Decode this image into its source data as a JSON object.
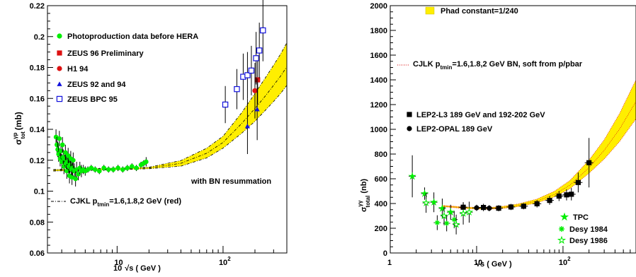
{
  "charts": [
    {
      "type": "scatter",
      "title": "",
      "xlabel_pre": "10",
      "xlabel": "√s ( GeV )",
      "ylabel_main": "σ",
      "ylabel_sup": "γp",
      "ylabel_sub": "tot",
      "ylabel_unit": "(mb)",
      "xscale": "log",
      "xlim": [
        2.2,
        400
      ],
      "ylim": [
        0.06,
        0.22
      ],
      "yticks": [
        "0.06",
        "0.08",
        "0.1",
        "0.12",
        "0.14",
        "0.16",
        "0.18",
        "0.2",
        "0.22"
      ],
      "xticks": [
        {
          "value": 10,
          "label": "10"
        },
        {
          "value": 100,
          "label": "10",
          "exp": "2"
        }
      ],
      "legend": [
        {
          "label": "Photoproduction data before HERA",
          "marker": "circle",
          "color": "#00ee00"
        },
        {
          "label": "ZEUS 96 Preliminary",
          "marker": "square",
          "color": "#dd1111"
        },
        {
          "label": "H1 94",
          "marker": "circle",
          "color": "#dd1111"
        },
        {
          "label": "ZEUS 92 and 94",
          "marker": "triangle",
          "color": "#1111dd"
        },
        {
          "label": "ZEUS BPC 95",
          "marker": "open-square",
          "color": "#1111dd"
        }
      ],
      "annotations": {
        "resummation": "with BN resummation",
        "curve_pre": "CJKL p",
        "curve_sub": "tmin",
        "curve_post": "=1.6,1.8,2 GeV (red)"
      },
      "band": {
        "x": [
          2.5,
          5,
          10,
          20,
          40,
          70,
          100,
          150,
          200,
          250,
          300,
          350,
          400
        ],
        "low": [
          0.113,
          0.1135,
          0.1138,
          0.1145,
          0.1162,
          0.1215,
          0.1278,
          0.1375,
          0.1452,
          0.1522,
          0.158,
          0.1632,
          0.1685
        ],
        "mid": [
          0.1135,
          0.114,
          0.1143,
          0.115,
          0.118,
          0.1245,
          0.1315,
          0.1438,
          0.1535,
          0.1615,
          0.1685,
          0.1745,
          0.1805
        ],
        "high": [
          0.114,
          0.1145,
          0.1148,
          0.1155,
          0.1198,
          0.1278,
          0.1355,
          0.1508,
          0.1632,
          0.1732,
          0.1815,
          0.1888,
          0.196
        ]
      },
      "series": [
        {
          "name": "Photoproduction data before HERA",
          "marker": "circle",
          "color": "#00ee00",
          "points": [
            [
              2.65,
              0.135,
              0.005
            ],
            [
              2.7,
              0.13,
              0.005
            ],
            [
              2.75,
              0.127,
              0.005
            ],
            [
              2.8,
              0.124,
              0.005
            ],
            [
              2.85,
              0.134,
              0.005
            ],
            [
              2.9,
              0.121,
              0.005
            ],
            [
              2.95,
              0.126,
              0.005
            ],
            [
              3.0,
              0.119,
              0.005
            ],
            [
              3.05,
              0.13,
              0.005
            ],
            [
              3.1,
              0.122,
              0.005
            ],
            [
              3.15,
              0.116,
              0.005
            ],
            [
              3.2,
              0.121,
              0.005
            ],
            [
              3.25,
              0.125,
              0.005
            ],
            [
              3.3,
              0.118,
              0.005
            ],
            [
              3.35,
              0.113,
              0.005
            ],
            [
              3.4,
              0.119,
              0.005
            ],
            [
              3.45,
              0.123,
              0.005
            ],
            [
              3.5,
              0.116,
              0.005
            ],
            [
              3.55,
              0.11,
              0.005
            ],
            [
              3.6,
              0.117,
              0.005
            ],
            [
              3.65,
              0.121,
              0.005
            ],
            [
              3.7,
              0.114,
              0.005
            ],
            [
              3.75,
              0.109,
              0.005
            ],
            [
              3.8,
              0.115,
              0.005
            ],
            [
              3.85,
              0.12,
              0.005
            ],
            [
              3.95,
              0.113,
              0.005
            ],
            [
              4.05,
              0.108,
              0.005
            ],
            [
              4.15,
              0.114,
              0.005
            ],
            [
              4.3,
              0.111,
              0.004
            ],
            [
              4.45,
              0.115,
              0.004
            ],
            [
              4.6,
              0.113,
              0.004
            ],
            [
              4.8,
              0.114,
              0.003
            ],
            [
              5.0,
              0.113,
              0.003
            ],
            [
              5.3,
              0.114,
              0.002
            ],
            [
              5.7,
              0.115,
              0.002
            ],
            [
              6.2,
              0.114,
              0.002
            ],
            [
              6.8,
              0.113,
              0.002
            ],
            [
              7.5,
              0.115,
              0.002
            ],
            [
              8.3,
              0.114,
              0.002
            ],
            [
              9.2,
              0.114,
              0.002
            ],
            [
              10.2,
              0.115,
              0.002
            ],
            [
              11.3,
              0.114,
              0.002
            ],
            [
              12.5,
              0.115,
              0.002
            ],
            [
              13.8,
              0.116,
              0.002
            ],
            [
              15.2,
              0.115,
              0.002
            ],
            [
              16.8,
              0.117,
              0.002
            ],
            [
              17.8,
              0.118,
              0.002
            ],
            [
              18.8,
              0.119,
              0.003
            ]
          ]
        },
        {
          "name": "ZEUS 96 Preliminary",
          "marker": "square",
          "color": "#dd1111",
          "points": [
            [
              212,
              0.172,
              0.016
            ]
          ]
        },
        {
          "name": "H1 94",
          "marker": "circle",
          "color": "#dd1111",
          "points": [
            [
              200,
              0.165,
              0.018
            ]
          ]
        },
        {
          "name": "ZEUS 92 and 94",
          "marker": "triangle",
          "color": "#1111dd",
          "points": [
            [
              170,
              0.142,
              0.018
            ],
            [
              210,
              0.153,
              0.02
            ]
          ]
        },
        {
          "name": "ZEUS BPC 95",
          "marker": "open-square",
          "color": "#1111dd",
          "points": [
            [
              105,
              0.156,
              0.012
            ],
            [
              135,
              0.166,
              0.013
            ],
            [
              155,
              0.174,
              0.015
            ],
            [
              170,
              0.175,
              0.015
            ],
            [
              185,
              0.178,
              0.016
            ],
            [
              205,
              0.186,
              0.017
            ],
            [
              220,
              0.191,
              0.018
            ],
            [
              238,
              0.204,
              0.02
            ]
          ]
        }
      ]
    },
    {
      "type": "scatter",
      "title": "",
      "xlabel": "√s ( GeV )",
      "ylabel_main": "σ",
      "ylabel_sup": "γγ",
      "ylabel_sub": "total",
      "ylabel_unit": "(nb)",
      "xscale": "log",
      "xlim": [
        1,
        700
      ],
      "ylim": [
        0,
        2000
      ],
      "yticks": [
        "0",
        "200",
        "400",
        "600",
        "800",
        "1000",
        "1200",
        "1400",
        "1600",
        "1800",
        "2000"
      ],
      "xticks": [
        {
          "value": 1,
          "label": "1"
        },
        {
          "value": 10,
          "label": "10"
        },
        {
          "value": 100,
          "label": "10",
          "exp": "2"
        }
      ],
      "legend_top": {
        "label": "Phad constant=1/240",
        "color": "#ffee00"
      },
      "curve_label": {
        "pre": "CJLK p",
        "sub": "tmin",
        "post": "=1.6,1.8,2 GeV BN, soft from p/pbar"
      },
      "legend_mid": [
        {
          "label": "LEP2-L3 189 GeV and 192-202 GeV",
          "marker": "square",
          "color": "#000000"
        },
        {
          "label": "LEP2-OPAL 189 GeV",
          "marker": "circle",
          "color": "#000000"
        }
      ],
      "legend_bottom": [
        {
          "label": "TPC",
          "marker": "star",
          "color": "#00ee00"
        },
        {
          "label": "Desy 1984",
          "marker": "asterisk",
          "color": "#00ee00"
        },
        {
          "label": "Desy 1986",
          "marker": "open-star",
          "color": "#00ee00"
        }
      ],
      "band": {
        "x": [
          4,
          7,
          10,
          15,
          20,
          30,
          50,
          80,
          120,
          200,
          300,
          450,
          700
        ],
        "low": [
          375,
          360,
          355,
          355,
          360,
          375,
          405,
          455,
          520,
          645,
          760,
          900,
          1085
        ],
        "mid": [
          380,
          366,
          362,
          363,
          368,
          385,
          420,
          475,
          548,
          690,
          830,
          1000,
          1225
        ],
        "high": [
          385,
          372,
          369,
          370,
          377,
          396,
          436,
          500,
          585,
          750,
          915,
          1125,
          1400
        ]
      },
      "series": [
        {
          "name": "LEP2-L3 189 GeV and 192-202 GeV",
          "marker": "square",
          "color": "#000000",
          "points": [
            [
              7,
              370,
              40
            ],
            [
              12,
              368,
              30
            ],
            [
              18,
              362,
              25
            ],
            [
              25,
              372,
              25
            ],
            [
              35,
              378,
              25
            ],
            [
              50,
              398,
              30
            ],
            [
              70,
              425,
              35
            ],
            [
              90,
              460,
              40
            ],
            [
              110,
              470,
              45
            ],
            [
              125,
              475,
              50
            ],
            [
              150,
              570,
              80
            ],
            [
              200,
              730,
              200
            ]
          ]
        },
        {
          "name": "LEP2-OPAL 189 GeV",
          "marker": "circle",
          "color": "#000000",
          "points": [
            [
              10,
              365,
              25
            ],
            [
              14,
              362,
              25
            ]
          ]
        },
        {
          "name": "TPC",
          "marker": "star",
          "color": "#00ee00",
          "points": [
            [
              1.8,
              620,
              170
            ],
            [
              2.5,
              480,
              50
            ],
            [
              3.2,
              410,
              80
            ],
            [
              4.0,
              360,
              80
            ],
            [
              5.0,
              330,
              60
            ]
          ]
        },
        {
          "name": "Desy 1984",
          "marker": "asterisk",
          "color": "#00ee00",
          "points": [
            [
              3.5,
              245,
              60
            ],
            [
              4.5,
              240,
              65
            ],
            [
              5.5,
              270,
              70
            ]
          ]
        },
        {
          "name": "Desy 1986",
          "marker": "open-star",
          "color": "#00ee00",
          "points": [
            [
              2.6,
              405,
              80
            ],
            [
              4.2,
              300,
              75
            ],
            [
              5.8,
              230,
              80
            ],
            [
              7.0,
              320,
              90
            ],
            [
              8.2,
              330,
              85
            ]
          ]
        }
      ]
    }
  ]
}
